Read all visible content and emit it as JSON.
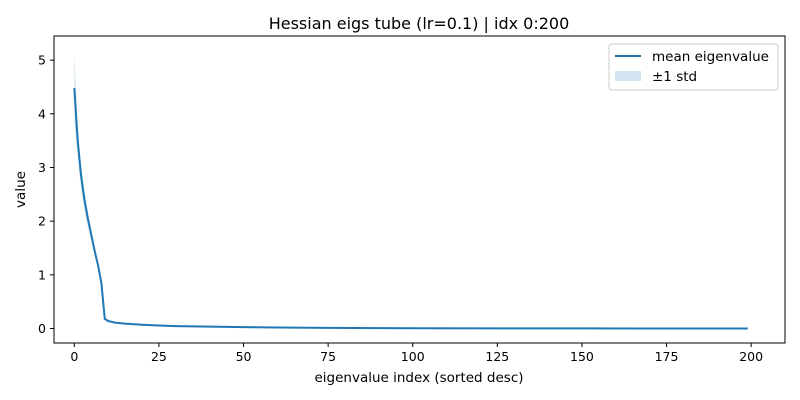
{
  "chart_data": {
    "type": "line",
    "title": "Hessian eigs tube (lr=0.1) | idx 0:200",
    "xlabel": "eigenvalue index (sorted desc)",
    "ylabel": "value",
    "xlim": [
      -6,
      210
    ],
    "ylim": [
      -0.27,
      5.45
    ],
    "xticks": [
      0,
      25,
      50,
      75,
      100,
      125,
      150,
      175,
      200
    ],
    "yticks": [
      0,
      1,
      2,
      3,
      4,
      5
    ],
    "grid": false,
    "legend_position": "top-right",
    "colors": {
      "line": "#1f77b4",
      "band": "#1f77b4",
      "band_opacity": 0.2
    },
    "x": [
      0,
      1,
      2,
      3,
      4,
      5,
      6,
      7,
      8,
      9,
      10,
      12,
      15,
      20,
      25,
      30,
      40,
      50,
      60,
      75,
      100,
      125,
      150,
      175,
      199
    ],
    "series": [
      {
        "name": "mean eigenvalue",
        "values": [
          4.48,
          3.5,
          2.85,
          2.4,
          2.05,
          1.75,
          1.45,
          1.18,
          0.85,
          0.18,
          0.14,
          0.11,
          0.09,
          0.07,
          0.055,
          0.045,
          0.035,
          0.025,
          0.018,
          0.012,
          0.006,
          0.003,
          0.002,
          0.001,
          0.0
        ]
      }
    ],
    "band": {
      "name": "±1 std",
      "upper": [
        5.1,
        3.8,
        3.05,
        2.55,
        2.18,
        1.85,
        1.53,
        1.24,
        0.9,
        0.19,
        0.15,
        0.115,
        0.095,
        0.073,
        0.057,
        0.047,
        0.036,
        0.026,
        0.019,
        0.013,
        0.007,
        0.004,
        0.003,
        0.002,
        0.001
      ],
      "lower": [
        3.9,
        3.2,
        2.6,
        2.2,
        1.9,
        1.63,
        1.37,
        1.12,
        0.8,
        0.17,
        0.13,
        0.105,
        0.085,
        0.067,
        0.053,
        0.043,
        0.034,
        0.024,
        0.017,
        0.011,
        0.005,
        0.002,
        0.001,
        0.0,
        -0.001
      ]
    }
  }
}
